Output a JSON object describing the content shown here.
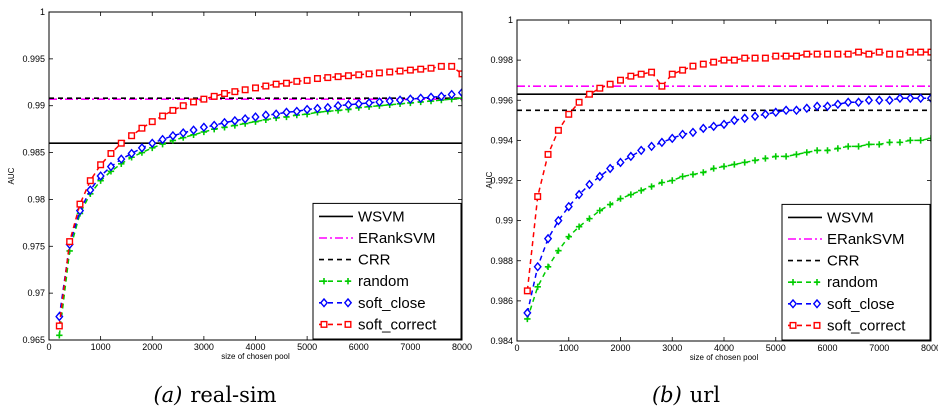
{
  "captions": [
    {
      "marker": "(a)",
      "text": "real-sim"
    },
    {
      "marker": "(b)",
      "text": "url"
    }
  ],
  "chart_data": [
    {
      "type": "line",
      "title": "",
      "xlabel": "size of chosen pool",
      "ylabel": "AUC",
      "xlim": [
        0,
        8000
      ],
      "ylim": [
        0.965,
        1.0
      ],
      "xticks": [
        "0",
        "1000",
        "2000",
        "3000",
        "4000",
        "5000",
        "6000",
        "7000",
        "8000"
      ],
      "yticks": [
        "0.965",
        "0.97",
        "0.975",
        "0.98",
        "0.985",
        "0.99",
        "0.995",
        "1"
      ],
      "grid": false,
      "legend": "bottom-right",
      "series": [
        {
          "name": "WSVM",
          "color": "#000000",
          "dash": "",
          "marker": "none",
          "hline": 0.986
        },
        {
          "name": "ERankSVM",
          "color": "#ff00ff",
          "dash": "8,3,2,3",
          "marker": "none",
          "hline": 0.9907
        },
        {
          "name": "CRR",
          "color": "#000000",
          "dash": "5,4",
          "marker": "none",
          "hline": 0.9908
        },
        {
          "name": "random",
          "color": "#00cc00",
          "dash": "5,4",
          "marker": "plus",
          "x": [
            200,
            400,
            600,
            800,
            1000,
            1200,
            1400,
            1600,
            1800,
            2000,
            2200,
            2400,
            2600,
            2800,
            3000,
            3200,
            3400,
            3600,
            3800,
            4000,
            4200,
            4400,
            4600,
            4800,
            5000,
            5200,
            5400,
            5600,
            5800,
            6000,
            6200,
            6400,
            6600,
            6800,
            7000,
            7200,
            7400,
            7600,
            7800,
            8000
          ],
          "values": [
            0.9655,
            0.9745,
            0.9785,
            0.9806,
            0.982,
            0.983,
            0.9838,
            0.9845,
            0.985,
            0.9855,
            0.9859,
            0.9863,
            0.9866,
            0.9869,
            0.9872,
            0.9875,
            0.9877,
            0.9879,
            0.9881,
            0.9883,
            0.9885,
            0.9887,
            0.9888,
            0.989,
            0.9891,
            0.9893,
            0.9894,
            0.9895,
            0.9896,
            0.9898,
            0.9899,
            0.99,
            0.9901,
            0.9902,
            0.9903,
            0.9904,
            0.9905,
            0.9906,
            0.9907,
            0.9908
          ]
        },
        {
          "name": "soft_close",
          "color": "#0000ff",
          "dash": "5,4",
          "marker": "diamond",
          "x": [
            200,
            400,
            600,
            800,
            1000,
            1200,
            1400,
            1600,
            1800,
            2000,
            2200,
            2400,
            2600,
            2800,
            3000,
            3200,
            3400,
            3600,
            3800,
            4000,
            4200,
            4400,
            4600,
            4800,
            5000,
            5200,
            5400,
            5600,
            5800,
            6000,
            6200,
            6400,
            6600,
            6800,
            7000,
            7200,
            7400,
            7600,
            7800,
            8000
          ],
          "values": [
            0.9675,
            0.9752,
            0.9788,
            0.981,
            0.9825,
            0.9835,
            0.9843,
            0.9849,
            0.9855,
            0.986,
            0.9864,
            0.9868,
            0.9871,
            0.9874,
            0.9877,
            0.9879,
            0.9882,
            0.9884,
            0.9886,
            0.9888,
            0.989,
            0.9891,
            0.9893,
            0.9894,
            0.9896,
            0.9897,
            0.9898,
            0.99,
            0.9901,
            0.9902,
            0.9903,
            0.9904,
            0.9905,
            0.9906,
            0.9907,
            0.9908,
            0.9909,
            0.991,
            0.9912,
            0.9914
          ]
        },
        {
          "name": "soft_correct",
          "color": "#ff0000",
          "dash": "5,4",
          "marker": "square",
          "x": [
            200,
            400,
            600,
            800,
            1000,
            1200,
            1400,
            1600,
            1800,
            2000,
            2200,
            2400,
            2600,
            2800,
            3000,
            3200,
            3400,
            3600,
            3800,
            4000,
            4200,
            4400,
            4600,
            4800,
            5000,
            5200,
            5400,
            5600,
            5800,
            6000,
            6200,
            6400,
            6600,
            6800,
            7000,
            7200,
            7400,
            7600,
            7800,
            8000
          ],
          "values": [
            0.9665,
            0.9755,
            0.9795,
            0.982,
            0.9837,
            0.9849,
            0.986,
            0.9868,
            0.9876,
            0.9883,
            0.9889,
            0.9895,
            0.99,
            0.9904,
            0.9907,
            0.991,
            0.9913,
            0.9915,
            0.9917,
            0.9919,
            0.9921,
            0.9923,
            0.9924,
            0.9926,
            0.9927,
            0.9929,
            0.993,
            0.9931,
            0.9932,
            0.9933,
            0.9934,
            0.9935,
            0.9936,
            0.9937,
            0.9938,
            0.9939,
            0.994,
            0.9942,
            0.9942,
            0.9934
          ]
        }
      ]
    },
    {
      "type": "line",
      "title": "",
      "xlabel": "size of chosen pool",
      "ylabel": "AUC",
      "xlim": [
        0,
        8000
      ],
      "ylim": [
        0.984,
        1.0
      ],
      "xticks": [
        "0",
        "1000",
        "2000",
        "3000",
        "4000",
        "5000",
        "6000",
        "7000",
        "8000"
      ],
      "yticks": [
        "0.984",
        "0.986",
        "0.988",
        "0.99",
        "0.992",
        "0.994",
        "0.996",
        "0.998",
        "1"
      ],
      "grid": false,
      "legend": "bottom-right",
      "series": [
        {
          "name": "WSVM",
          "color": "#000000",
          "dash": "",
          "marker": "none",
          "hline": 0.9963
        },
        {
          "name": "ERankSVM",
          "color": "#ff00ff",
          "dash": "8,3,2,3",
          "marker": "none",
          "hline": 0.9967
        },
        {
          "name": "CRR",
          "color": "#000000",
          "dash": "5,4",
          "marker": "none",
          "hline": 0.9955
        },
        {
          "name": "random",
          "color": "#00cc00",
          "dash": "5,4",
          "marker": "plus",
          "x": [
            200,
            400,
            600,
            800,
            1000,
            1200,
            1400,
            1600,
            1800,
            2000,
            2200,
            2400,
            2600,
            2800,
            3000,
            3200,
            3400,
            3600,
            3800,
            4000,
            4200,
            4400,
            4600,
            4800,
            5000,
            5200,
            5400,
            5600,
            5800,
            6000,
            6200,
            6400,
            6600,
            6800,
            7000,
            7200,
            7400,
            7600,
            7800,
            8000
          ],
          "values": [
            0.9851,
            0.9867,
            0.9877,
            0.9885,
            0.9892,
            0.9897,
            0.9901,
            0.9905,
            0.9908,
            0.9911,
            0.9913,
            0.9915,
            0.9917,
            0.9919,
            0.992,
            0.9922,
            0.9923,
            0.9924,
            0.9926,
            0.9927,
            0.9928,
            0.9929,
            0.993,
            0.9931,
            0.9932,
            0.9932,
            0.9933,
            0.9934,
            0.9935,
            0.9935,
            0.9936,
            0.9937,
            0.9937,
            0.9938,
            0.9938,
            0.9939,
            0.9939,
            0.994,
            0.994,
            0.9941
          ]
        },
        {
          "name": "soft_close",
          "color": "#0000ff",
          "dash": "5,4",
          "marker": "diamond",
          "x": [
            200,
            400,
            600,
            800,
            1000,
            1200,
            1400,
            1600,
            1800,
            2000,
            2200,
            2400,
            2600,
            2800,
            3000,
            3200,
            3400,
            3600,
            3800,
            4000,
            4200,
            4400,
            4600,
            4800,
            5000,
            5200,
            5400,
            5600,
            5800,
            6000,
            6200,
            6400,
            6600,
            6800,
            7000,
            7200,
            7400,
            7600,
            7800,
            8000
          ],
          "values": [
            0.9854,
            0.9877,
            0.9891,
            0.99,
            0.9907,
            0.9913,
            0.9918,
            0.9922,
            0.9926,
            0.9929,
            0.9932,
            0.9935,
            0.9937,
            0.9939,
            0.9941,
            0.9943,
            0.9944,
            0.9946,
            0.9947,
            0.9948,
            0.995,
            0.9951,
            0.9952,
            0.9953,
            0.9954,
            0.9955,
            0.9955,
            0.9956,
            0.9957,
            0.9957,
            0.9958,
            0.9959,
            0.9959,
            0.996,
            0.996,
            0.996,
            0.9961,
            0.9961,
            0.9961,
            0.9961
          ]
        },
        {
          "name": "soft_correct",
          "color": "#ff0000",
          "dash": "5,4",
          "marker": "square",
          "x": [
            200,
            400,
            600,
            800,
            1000,
            1200,
            1400,
            1600,
            1800,
            2000,
            2200,
            2400,
            2600,
            2800,
            3000,
            3200,
            3400,
            3600,
            3800,
            4000,
            4200,
            4400,
            4600,
            4800,
            5000,
            5200,
            5400,
            5600,
            5800,
            6000,
            6200,
            6400,
            6600,
            6800,
            7000,
            7200,
            7400,
            7600,
            7800,
            8000
          ],
          "values": [
            0.9865,
            0.9912,
            0.9933,
            0.9945,
            0.9953,
            0.9959,
            0.9963,
            0.9966,
            0.9968,
            0.997,
            0.9972,
            0.9973,
            0.9974,
            0.9967,
            0.9973,
            0.9975,
            0.9977,
            0.9978,
            0.9979,
            0.998,
            0.998,
            0.9981,
            0.9981,
            0.9981,
            0.9982,
            0.9982,
            0.9982,
            0.9983,
            0.9983,
            0.9983,
            0.9983,
            0.9983,
            0.9984,
            0.9983,
            0.9984,
            0.9983,
            0.9983,
            0.9984,
            0.9984,
            0.9984
          ]
        }
      ]
    }
  ]
}
